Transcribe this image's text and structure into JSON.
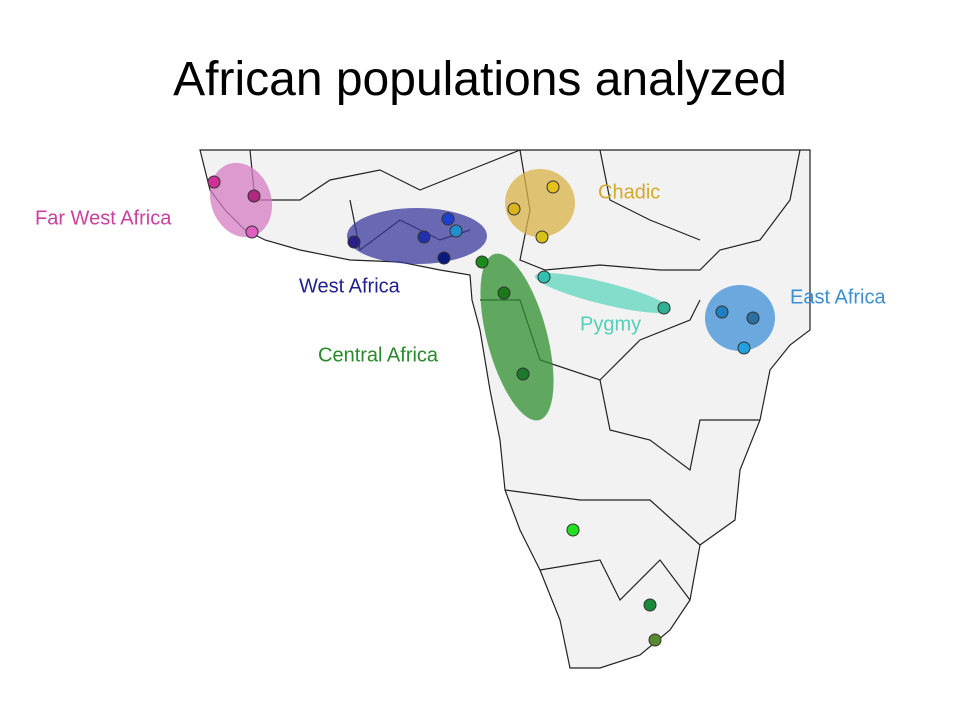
{
  "title": "African populations analyzed",
  "regions": [
    {
      "label": "Far West Africa"
    },
    {
      "label": "West Africa"
    },
    {
      "label": "Central Africa"
    },
    {
      "label": "Chadic"
    },
    {
      "label": "Pygmy"
    },
    {
      "label": "East Africa"
    }
  ]
}
